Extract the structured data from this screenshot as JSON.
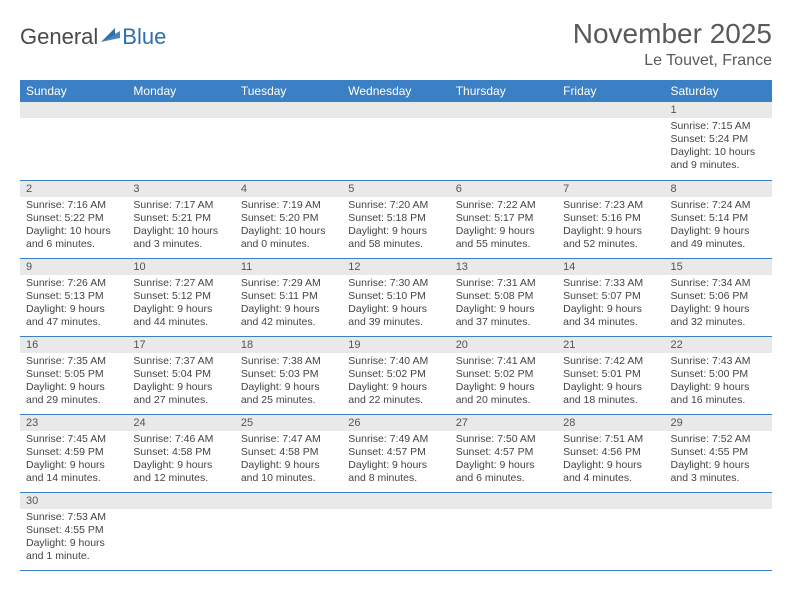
{
  "brand": {
    "part1": "General",
    "part2": "Blue"
  },
  "title": "November 2025",
  "location": "Le Touvet, France",
  "colors": {
    "header_bg": "#3b7fc4",
    "header_text": "#ffffff",
    "daynum_bg": "#e9e9e9",
    "border": "#3b7fc4",
    "brand_blue": "#2f6fad",
    "text": "#444444"
  },
  "weekdays": [
    "Sunday",
    "Monday",
    "Tuesday",
    "Wednesday",
    "Thursday",
    "Friday",
    "Saturday"
  ],
  "weeks": [
    [
      null,
      null,
      null,
      null,
      null,
      null,
      {
        "n": "1",
        "sunrise": "7:15 AM",
        "sunset": "5:24 PM",
        "daylight": "10 hours and 9 minutes."
      }
    ],
    [
      {
        "n": "2",
        "sunrise": "7:16 AM",
        "sunset": "5:22 PM",
        "daylight": "10 hours and 6 minutes."
      },
      {
        "n": "3",
        "sunrise": "7:17 AM",
        "sunset": "5:21 PM",
        "daylight": "10 hours and 3 minutes."
      },
      {
        "n": "4",
        "sunrise": "7:19 AM",
        "sunset": "5:20 PM",
        "daylight": "10 hours and 0 minutes."
      },
      {
        "n": "5",
        "sunrise": "7:20 AM",
        "sunset": "5:18 PM",
        "daylight": "9 hours and 58 minutes."
      },
      {
        "n": "6",
        "sunrise": "7:22 AM",
        "sunset": "5:17 PM",
        "daylight": "9 hours and 55 minutes."
      },
      {
        "n": "7",
        "sunrise": "7:23 AM",
        "sunset": "5:16 PM",
        "daylight": "9 hours and 52 minutes."
      },
      {
        "n": "8",
        "sunrise": "7:24 AM",
        "sunset": "5:14 PM",
        "daylight": "9 hours and 49 minutes."
      }
    ],
    [
      {
        "n": "9",
        "sunrise": "7:26 AM",
        "sunset": "5:13 PM",
        "daylight": "9 hours and 47 minutes."
      },
      {
        "n": "10",
        "sunrise": "7:27 AM",
        "sunset": "5:12 PM",
        "daylight": "9 hours and 44 minutes."
      },
      {
        "n": "11",
        "sunrise": "7:29 AM",
        "sunset": "5:11 PM",
        "daylight": "9 hours and 42 minutes."
      },
      {
        "n": "12",
        "sunrise": "7:30 AM",
        "sunset": "5:10 PM",
        "daylight": "9 hours and 39 minutes."
      },
      {
        "n": "13",
        "sunrise": "7:31 AM",
        "sunset": "5:08 PM",
        "daylight": "9 hours and 37 minutes."
      },
      {
        "n": "14",
        "sunrise": "7:33 AM",
        "sunset": "5:07 PM",
        "daylight": "9 hours and 34 minutes."
      },
      {
        "n": "15",
        "sunrise": "7:34 AM",
        "sunset": "5:06 PM",
        "daylight": "9 hours and 32 minutes."
      }
    ],
    [
      {
        "n": "16",
        "sunrise": "7:35 AM",
        "sunset": "5:05 PM",
        "daylight": "9 hours and 29 minutes."
      },
      {
        "n": "17",
        "sunrise": "7:37 AM",
        "sunset": "5:04 PM",
        "daylight": "9 hours and 27 minutes."
      },
      {
        "n": "18",
        "sunrise": "7:38 AM",
        "sunset": "5:03 PM",
        "daylight": "9 hours and 25 minutes."
      },
      {
        "n": "19",
        "sunrise": "7:40 AM",
        "sunset": "5:02 PM",
        "daylight": "9 hours and 22 minutes."
      },
      {
        "n": "20",
        "sunrise": "7:41 AM",
        "sunset": "5:02 PM",
        "daylight": "9 hours and 20 minutes."
      },
      {
        "n": "21",
        "sunrise": "7:42 AM",
        "sunset": "5:01 PM",
        "daylight": "9 hours and 18 minutes."
      },
      {
        "n": "22",
        "sunrise": "7:43 AM",
        "sunset": "5:00 PM",
        "daylight": "9 hours and 16 minutes."
      }
    ],
    [
      {
        "n": "23",
        "sunrise": "7:45 AM",
        "sunset": "4:59 PM",
        "daylight": "9 hours and 14 minutes."
      },
      {
        "n": "24",
        "sunrise": "7:46 AM",
        "sunset": "4:58 PM",
        "daylight": "9 hours and 12 minutes."
      },
      {
        "n": "25",
        "sunrise": "7:47 AM",
        "sunset": "4:58 PM",
        "daylight": "9 hours and 10 minutes."
      },
      {
        "n": "26",
        "sunrise": "7:49 AM",
        "sunset": "4:57 PM",
        "daylight": "9 hours and 8 minutes."
      },
      {
        "n": "27",
        "sunrise": "7:50 AM",
        "sunset": "4:57 PM",
        "daylight": "9 hours and 6 minutes."
      },
      {
        "n": "28",
        "sunrise": "7:51 AM",
        "sunset": "4:56 PM",
        "daylight": "9 hours and 4 minutes."
      },
      {
        "n": "29",
        "sunrise": "7:52 AM",
        "sunset": "4:55 PM",
        "daylight": "9 hours and 3 minutes."
      }
    ],
    [
      {
        "n": "30",
        "sunrise": "7:53 AM",
        "sunset": "4:55 PM",
        "daylight": "9 hours and 1 minute."
      },
      null,
      null,
      null,
      null,
      null,
      null
    ]
  ],
  "labels": {
    "sunrise": "Sunrise:",
    "sunset": "Sunset:",
    "daylight": "Daylight:"
  }
}
